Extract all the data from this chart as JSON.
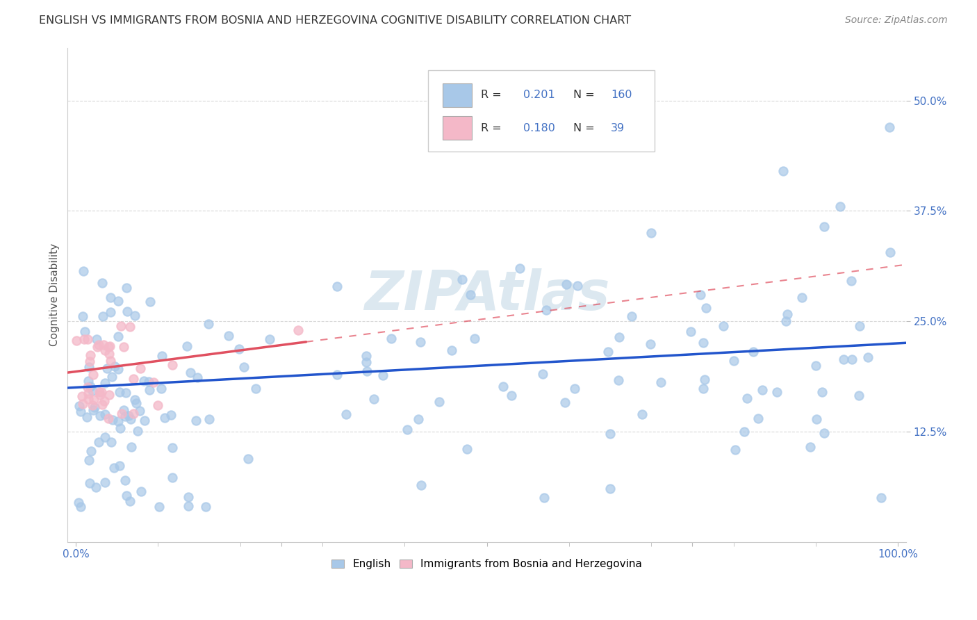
{
  "title": "ENGLISH VS IMMIGRANTS FROM BOSNIA AND HERZEGOVINA COGNITIVE DISABILITY CORRELATION CHART",
  "source": "Source: ZipAtlas.com",
  "ylabel": "Cognitive Disability",
  "xlim": [
    -0.01,
    1.01
  ],
  "ylim": [
    0.0,
    0.56
  ],
  "x_ticks": [
    0.0,
    0.25,
    0.5,
    0.75,
    1.0
  ],
  "x_tick_labels": [
    "0.0%",
    "",
    "",
    "",
    "100.0%"
  ],
  "y_ticks": [
    0.125,
    0.25,
    0.375,
    0.5
  ],
  "y_tick_labels": [
    "12.5%",
    "25.0%",
    "37.5%",
    "50.0%"
  ],
  "english_color": "#a8c8e8",
  "immigrant_color": "#f4b8c8",
  "english_line_color": "#2255cc",
  "immigrant_line_color": "#e05060",
  "R_english": 0.201,
  "N_english": 160,
  "R_immigrant": 0.18,
  "N_immigrant": 39,
  "background_color": "#ffffff",
  "grid_color": "#d8d8d8",
  "watermark_color": "#dce8f0",
  "title_color": "#333333",
  "source_color": "#888888",
  "tick_color": "#4472c4",
  "ylabel_color": "#555555"
}
